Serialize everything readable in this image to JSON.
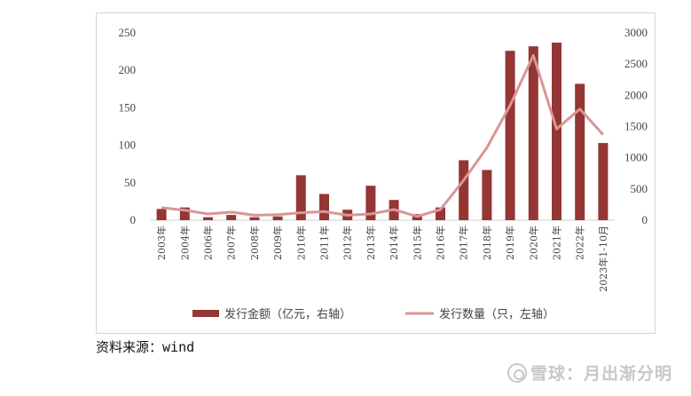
{
  "chart_data": {
    "type": "bar+line",
    "categories": [
      "2003年",
      "2004年",
      "2006年",
      "2007年",
      "2008年",
      "2009年",
      "2010年",
      "2011年",
      "2012年",
      "2013年",
      "2014年",
      "2015年",
      "2016年",
      "2017年",
      "2018年",
      "2019年",
      "2020年",
      "2021年",
      "2022年",
      "2023年1-10月"
    ],
    "series": [
      {
        "name": "发行金额（亿元，右轴）",
        "type": "bar",
        "axis": "left",
        "color": "#943634",
        "values": [
          15,
          17,
          4,
          7,
          4,
          5,
          60,
          35,
          14,
          46,
          27,
          8,
          17,
          80,
          67,
          226,
          232,
          237,
          182,
          103
        ]
      },
      {
        "name": "发行数量（只，左轴）",
        "type": "line",
        "axis": "right",
        "color": "#d99694",
        "values": [
          200,
          160,
          100,
          130,
          80,
          90,
          120,
          140,
          80,
          100,
          170,
          60,
          170,
          640,
          1160,
          1840,
          2640,
          1460,
          1780,
          1370
        ]
      }
    ],
    "y_left": {
      "ticks": [
        "0",
        "50",
        "100",
        "150",
        "200",
        "250"
      ],
      "range": [
        0,
        250
      ]
    },
    "y_right": {
      "ticks": [
        "0",
        "500",
        "1000",
        "1500",
        "2000",
        "2500",
        "3000"
      ],
      "range": [
        0,
        3000
      ]
    },
    "legend_position": "bottom"
  },
  "source": {
    "label": "资料来源：",
    "value": "wind"
  },
  "watermark": {
    "text": "雪球：月出渐分明"
  }
}
